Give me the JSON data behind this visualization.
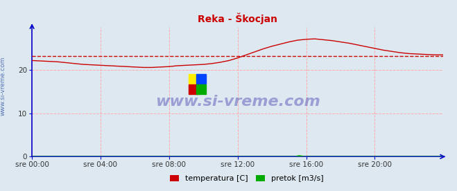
{
  "title": "Reka - Škocjan",
  "title_color": "#cc0000",
  "bg_color": "#dde8f0",
  "plot_bg_color": "#dde8f0",
  "grid_color": "#ffaaaa",
  "axis_color": "#0000cc",
  "xlabel_ticks": [
    "sre 00:00",
    "sre 04:00",
    "sre 08:00",
    "sre 12:00",
    "sre 16:00",
    "sre 20:00"
  ],
  "xtick_positions": [
    0,
    4,
    8,
    12,
    16,
    20
  ],
  "ylim": [
    0,
    30
  ],
  "yticks": [
    0,
    10,
    20
  ],
  "temp_color": "#cc0000",
  "pretok_color": "#00aa00",
  "avg_color": "#cc0000",
  "watermark": "www.si-vreme.com",
  "watermark_color": "#3333aa",
  "legend_labels": [
    "temperatura [C]",
    "pretok [m3/s]"
  ],
  "legend_colors": [
    "#cc0000",
    "#00aa00"
  ],
  "temp_data_x": [
    0.0,
    0.5,
    1.0,
    1.5,
    2.0,
    2.5,
    3.0,
    3.5,
    4.0,
    4.5,
    5.0,
    5.5,
    6.0,
    6.5,
    7.0,
    7.5,
    8.0,
    8.5,
    9.0,
    9.5,
    10.0,
    10.5,
    11.0,
    11.5,
    12.0,
    12.5,
    13.0,
    13.5,
    14.0,
    14.5,
    15.0,
    15.5,
    16.0,
    16.5,
    17.0,
    17.5,
    18.0,
    18.5,
    19.0,
    19.5,
    20.0,
    20.5,
    21.0,
    21.5,
    22.0,
    22.5,
    23.0,
    23.5,
    24.0
  ],
  "temp_data_y": [
    22.2,
    22.1,
    22.0,
    21.9,
    21.7,
    21.5,
    21.3,
    21.2,
    21.1,
    21.0,
    20.9,
    20.8,
    20.7,
    20.6,
    20.6,
    20.7,
    20.8,
    21.0,
    21.1,
    21.2,
    21.3,
    21.5,
    21.8,
    22.2,
    22.8,
    23.5,
    24.2,
    24.9,
    25.5,
    26.0,
    26.5,
    26.9,
    27.1,
    27.2,
    27.0,
    26.8,
    26.5,
    26.2,
    25.8,
    25.4,
    25.0,
    24.6,
    24.3,
    24.0,
    23.8,
    23.7,
    23.6,
    23.5,
    23.5
  ],
  "avg_value": 23.3,
  "pretok_data_x": [
    0,
    15.4,
    15.5,
    15.6,
    15.7,
    15.9,
    24
  ],
  "pretok_data_y": [
    0.0,
    0.0,
    0.15,
    0.2,
    0.15,
    0.0,
    0.0
  ],
  "sidebar_text": "www.si-vreme.com",
  "figsize": [
    6.59,
    2.76
  ],
  "dpi": 100
}
